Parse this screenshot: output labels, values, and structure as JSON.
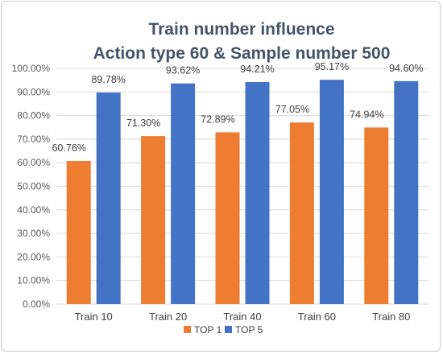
{
  "chart_data": {
    "type": "bar",
    "title_lines": [
      "Train number influence",
      "Action type 60 & Sample number 500"
    ],
    "xlabel": "",
    "ylabel": "",
    "categories": [
      "Train  10",
      "Train  20",
      "Train  40",
      "Train  60",
      "Train  80"
    ],
    "series": [
      {
        "name": "TOP 1",
        "color": "#ed7d31",
        "values": [
          60.76,
          71.3,
          72.89,
          77.05,
          74.94
        ],
        "labels": [
          "60.76%",
          "71.30%",
          "72.89%",
          "77.05%",
          "74.94%"
        ]
      },
      {
        "name": "TOP 5",
        "color": "#4472c4",
        "values": [
          89.78,
          93.62,
          94.21,
          95.17,
          94.6
        ],
        "labels": [
          "89.78%",
          "93.62%",
          "94.21%",
          "95.17%",
          "94.60%"
        ]
      }
    ],
    "ylim": [
      0,
      100
    ],
    "yticks": [
      0,
      10,
      20,
      30,
      40,
      50,
      60,
      70,
      80,
      90,
      100
    ],
    "ytick_labels": [
      "0.00%",
      "10.00%",
      "20.00%",
      "30.00%",
      "40.00%",
      "50.00%",
      "60.00%",
      "70.00%",
      "80.00%",
      "90.00%",
      "100.00%"
    ],
    "grid": true,
    "legend_position": "bottom",
    "gridline_color": "#d9d9d9"
  }
}
